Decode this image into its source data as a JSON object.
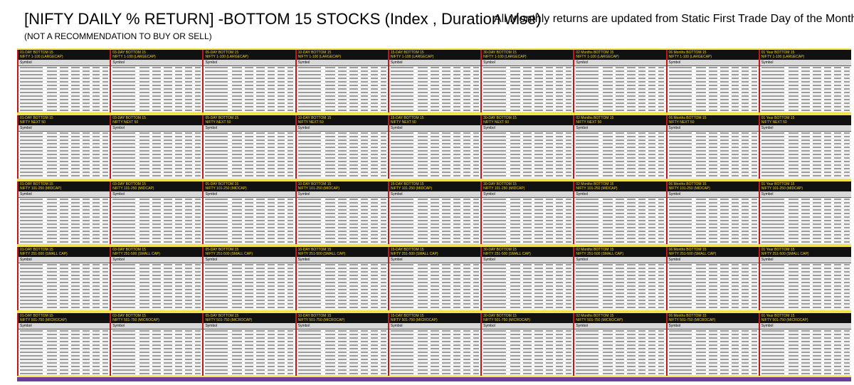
{
  "header": {
    "title": "[NIFTY DAILY % RETURN] -BOTTOM 15 STOCKS  (Index , Duration wise)",
    "subtitle": "(NOT A RECOMMENDATION TO BUY OR SELL)",
    "note": "All Monthly returns are updated from Static First Trade Day of the Month"
  },
  "panels": {
    "durations": [
      "01-DAY",
      "03-DAY",
      "05-DAY",
      "10-DAY",
      "15-DAY",
      "30-DAY",
      "02 Months",
      "06 Months",
      "01 Year"
    ],
    "label": "BOTTOM 15",
    "indices": [
      "NIFTY 1-100 (LARGECAP)",
      "NIFTY NEXT 50",
      "NIFTY 101-250 (MIDCAP)",
      "NIFTY 251-500 (SMALL CAP)",
      "NIFTY 501-750 (MICROCAP)"
    ],
    "symbol_header": "Symbol"
  }
}
